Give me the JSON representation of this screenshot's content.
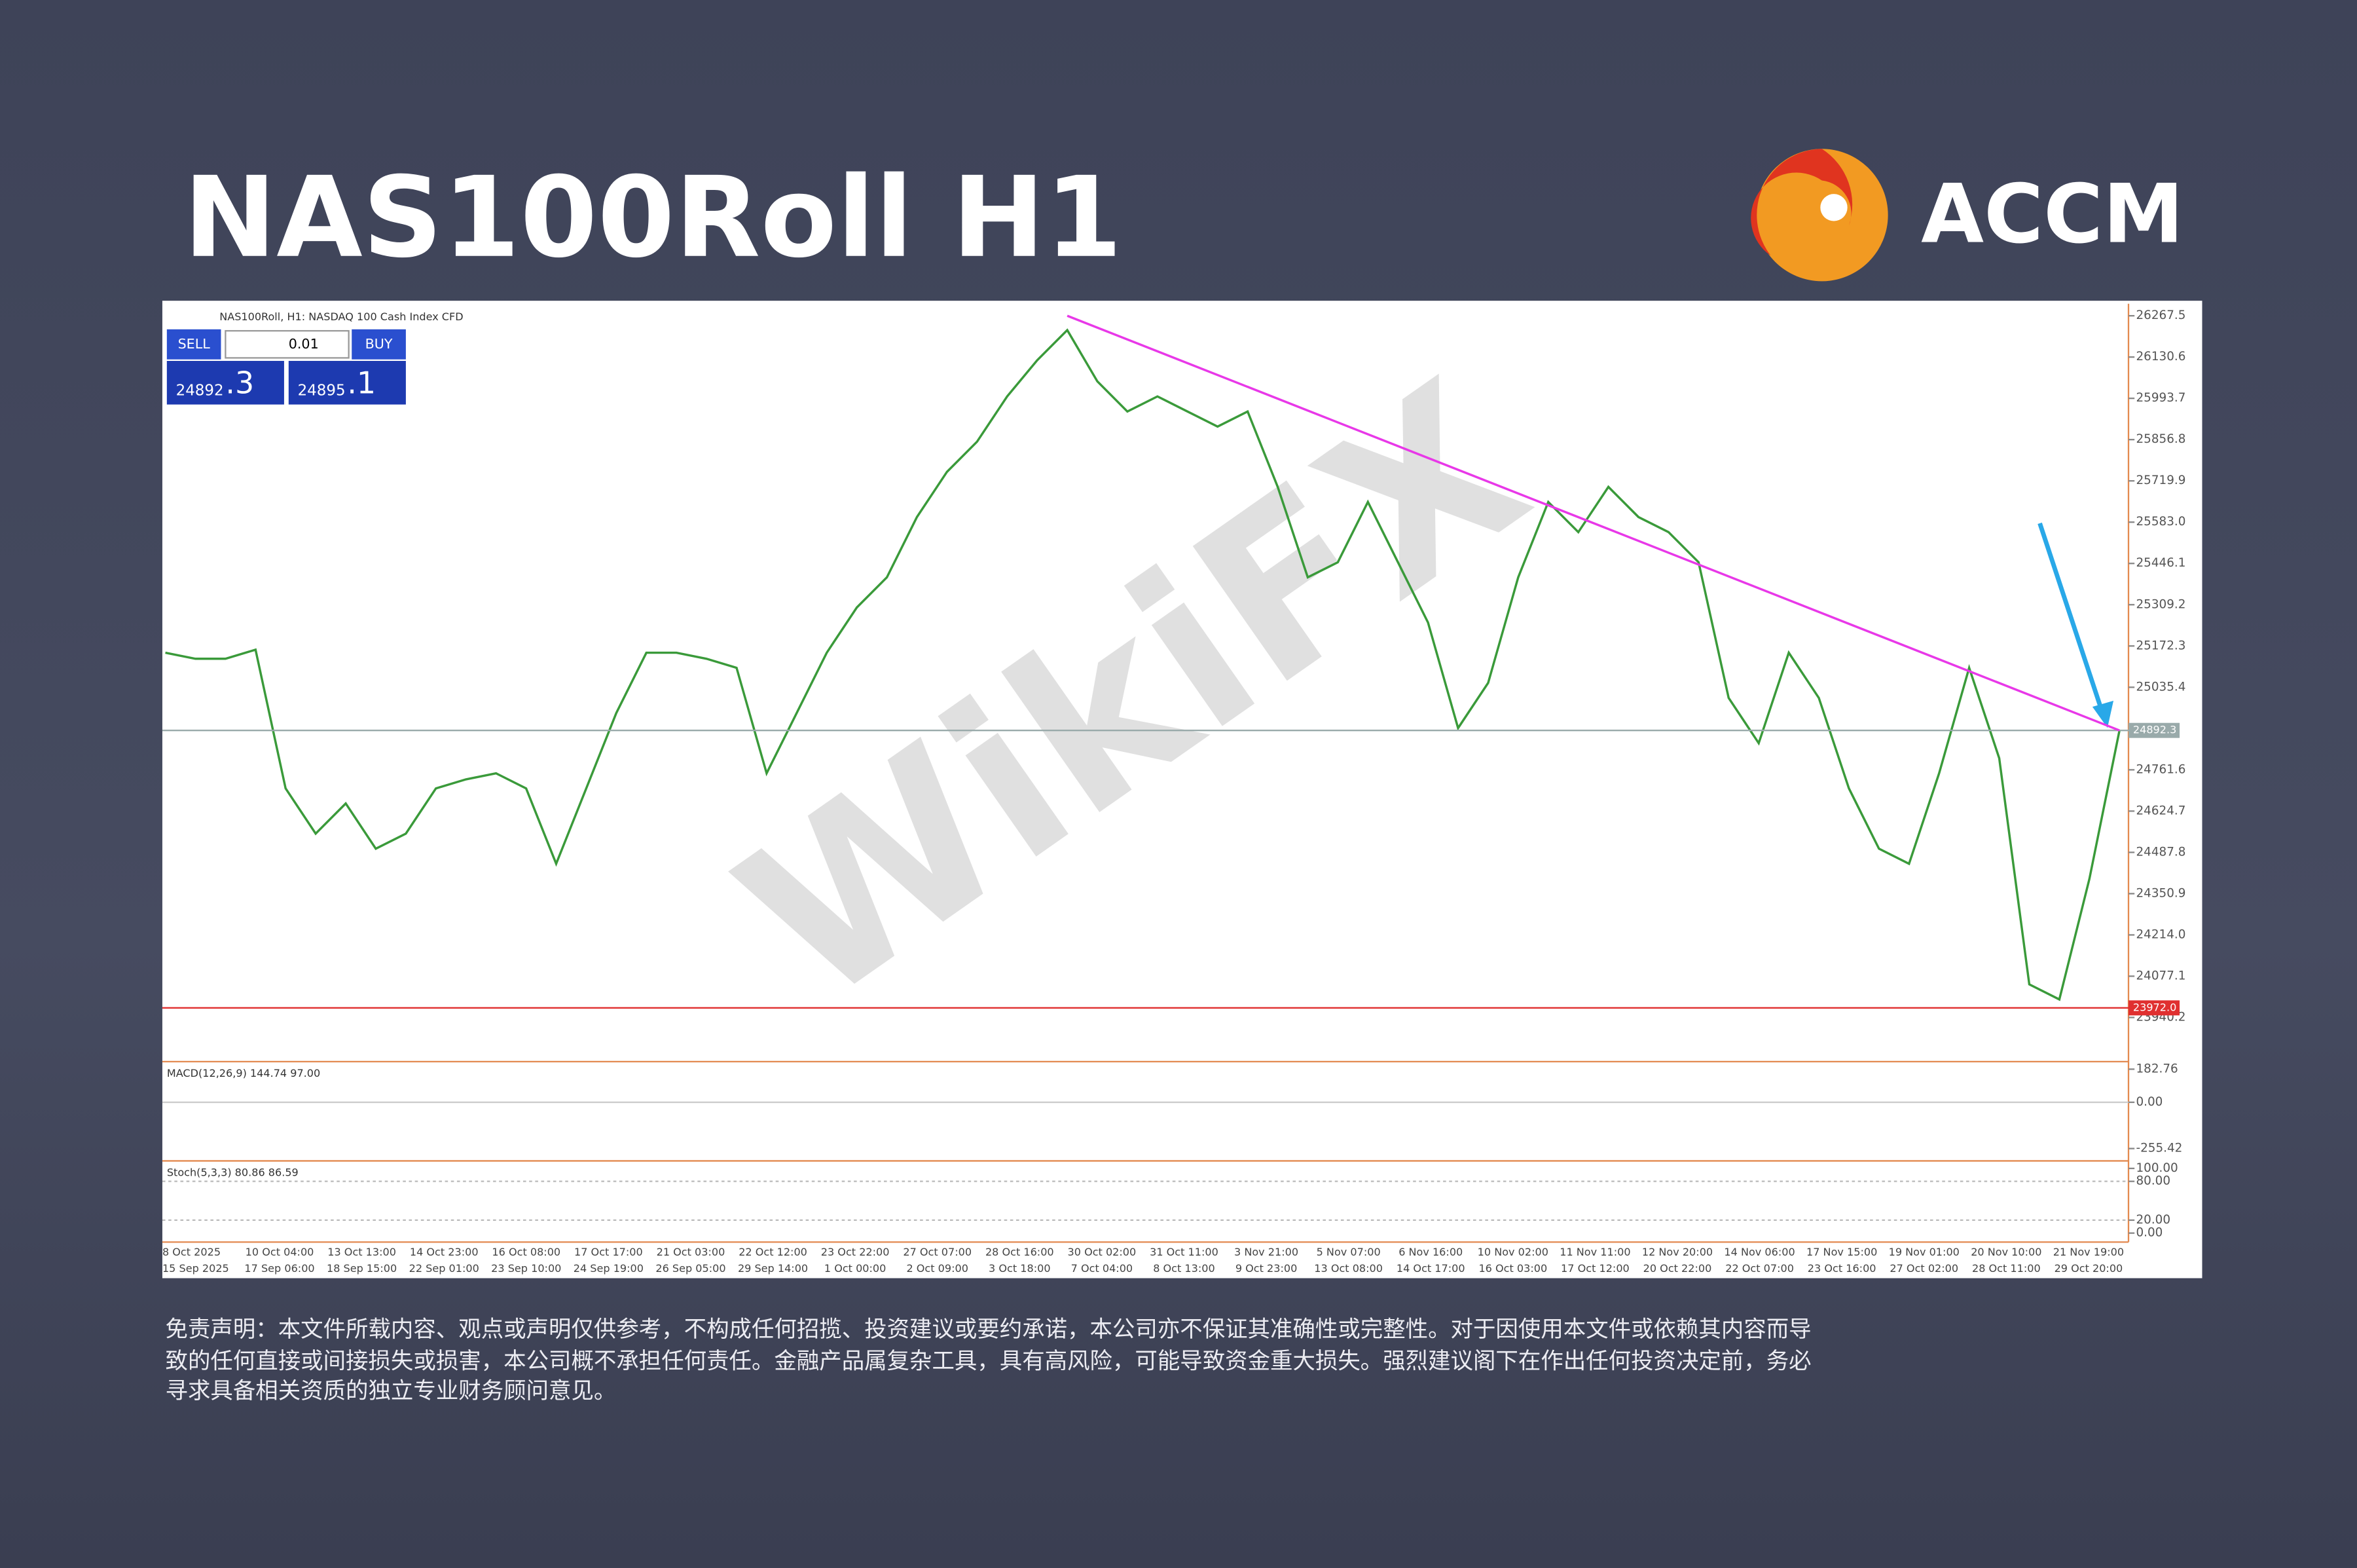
{
  "header": {
    "title": "NAS100Roll H1",
    "logo": "ACCM"
  },
  "watermark": "WikiFX",
  "chart_header": "NAS100Roll, H1:  NASDAQ 100 Cash Index CFD",
  "trade_panel": {
    "sell": "SELL",
    "volume": "0.01",
    "buy": "BUY",
    "bid_main": "24892",
    "bid_small": ".3",
    "ask_main": "24895",
    "ask_small": ".1"
  },
  "chart_data": {
    "type": "line",
    "color": "#3a9a3a",
    "values": [
      25150,
      25130,
      25130,
      25160,
      24700,
      24550,
      24650,
      24500,
      24550,
      24700,
      24730,
      24750,
      24700,
      24450,
      24700,
      24950,
      25150,
      25150,
      25130,
      25100,
      24750,
      24950,
      25150,
      25300,
      25400,
      25600,
      25750,
      25850,
      26000,
      26120,
      26220,
      26050,
      25950,
      26000,
      25950,
      25900,
      25950,
      25700,
      25400,
      25450,
      25650,
      25450,
      25250,
      24900,
      25050,
      25400,
      25650,
      25550,
      25700,
      25600,
      25550,
      25450,
      25000,
      24850,
      25150,
      25000,
      24700,
      24500,
      24450,
      24750,
      25100,
      24800,
      24050,
      24000,
      24400,
      24892.3
    ],
    "ylim": [
      23798.7,
      26292.4
    ],
    "yticks": [
      26267.5,
      26130.6,
      25993.7,
      25856.8,
      25719.9,
      {
        "value": 25583.0,
        "label": "25583.0"
      },
      25446.1,
      25309.2,
      25172.3,
      25035.4,
      24761.6,
      24624.7,
      24487.8,
      24350.9,
      {
        "value": 24214.0,
        "label": "24214.0"
      },
      24077.1,
      23940.2
    ],
    "current_price": 24892.3,
    "support": {
      "value": 23972.0,
      "label": "23972.0",
      "color": "#e03030"
    },
    "trendline": {
      "color": "#e838e8",
      "start_index": 30,
      "start_value": 26267.5,
      "end_index": 65,
      "end_value": 24892.3
    },
    "time_labels": [
      "8 Oct 2025",
      "10 Oct 04:00",
      "13 Oct 13:00",
      "14 Oct 23:00",
      "16 Oct 08:00",
      "17 Oct 17:00",
      "21 Oct 03:00",
      "22 Oct 12:00",
      "23 Oct 22:00",
      "27 Oct 07:00",
      "28 Oct 16:00",
      "30 Oct 02:00",
      "31 Oct 11:00",
      "3 Nov 21:00",
      "5 Nov 07:00",
      "6 Nov 16:00",
      "10 Nov 02:00",
      "11 Nov 11:00",
      "12 Nov 20:00",
      "14 Nov 06:00",
      "17 Nov 15:00",
      "19 Nov 01:00",
      "20 Nov 10:00",
      "21 Nov 19:00"
    ],
    "time_labels_2": [
      "15 Sep 2025",
      "17 Sep 06:00",
      "18 Sep 15:00",
      "22 Sep 01:00",
      "23 Sep 10:00",
      "24 Sep 19:00",
      "26 Sep 05:00",
      "29 Sep 14:00",
      "1 Oct 00:00",
      "2 Oct 09:00",
      "3 Oct 18:00",
      "7 Oct 04:00",
      "8 Oct 13:00",
      "9 Oct 23:00",
      "13 Oct 08:00",
      "14 Oct 17:00",
      "16 Oct 03:00",
      "17 Oct 12:00",
      "20 Oct 22:00",
      "22 Oct 07:00",
      "23 Oct 16:00",
      "27 Oct 02:00",
      "28 Oct 11:00",
      "29 Oct 20:00"
    ],
    "macd": {
      "label": "MACD(12,26,9) 144.74 97.00",
      "ylim": [
        -307,
        224.3
      ],
      "yticks": [
        182.76,
        {
          "value": 0,
          "label": "0.00"
        },
        -255.42
      ]
    },
    "stoch": {
      "label": "Stoch(5,3,3) 80.86 86.59",
      "ylim": [
        -11.6,
        109.3
      ],
      "yticks": [
        {
          "value": 100,
          "label": "100.00"
        },
        {
          "value": 80,
          "label": "80.00"
        },
        {
          "value": 20,
          "label": "20.00"
        },
        {
          "value": 0,
          "label": "0.00"
        }
      ]
    }
  },
  "disclaimer": [
    "免责声明：本文件所载内容、观点或声明仅供参考，不构成任何招揽、投资建议或要约承诺，本公司亦不保证其准确性或完整性。对于因使用本文件或依赖其内容而导",
    "致的任何直接或间接损失或损害，本公司概不承担任何责任。金融产品属复杂工具，具有高风险，可能导致资金重大损失。强烈建议阁下在作出任何投资决定前，务必",
    "寻求具备相关资质的独立专业财务顾问意见。"
  ]
}
